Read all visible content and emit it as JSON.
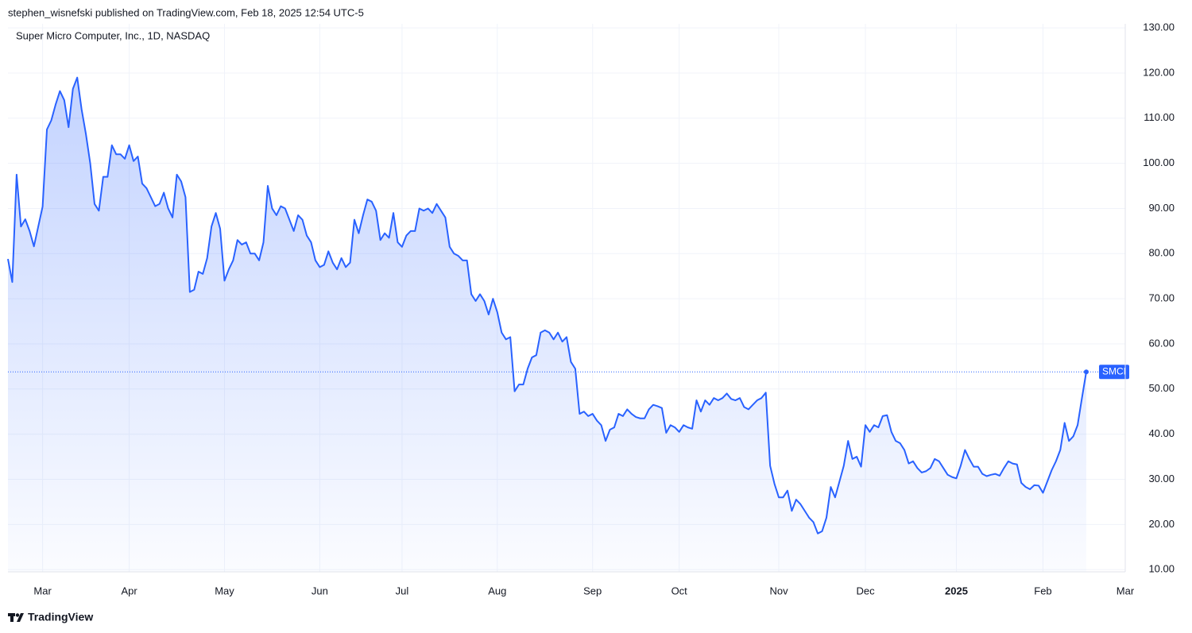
{
  "header": {
    "text": "stephen_wisnefski published on TradingView.com, Feb 18, 2025 12:54 UTC-5"
  },
  "footer": {
    "brand": "TradingView"
  },
  "chart_data": {
    "type": "line",
    "title": "Super Micro Computer, Inc., 1D, NASDAQ",
    "categories": [
      null,
      null,
      null,
      null,
      null,
      null,
      null,
      null,
      "Mar",
      null,
      null,
      null,
      null,
      null,
      null,
      null,
      null,
      null,
      null,
      null,
      null,
      null,
      null,
      null,
      null,
      null,
      null,
      null,
      "Apr",
      null,
      null,
      null,
      null,
      null,
      null,
      null,
      null,
      null,
      null,
      null,
      null,
      null,
      null,
      null,
      null,
      null,
      null,
      null,
      null,
      null,
      "May",
      null,
      null,
      null,
      null,
      null,
      null,
      null,
      null,
      null,
      null,
      null,
      null,
      null,
      null,
      null,
      null,
      null,
      null,
      null,
      null,
      null,
      "Jun",
      null,
      null,
      null,
      null,
      null,
      null,
      null,
      null,
      null,
      null,
      null,
      null,
      null,
      null,
      null,
      null,
      null,
      null,
      "Jul",
      null,
      null,
      null,
      null,
      null,
      null,
      null,
      null,
      null,
      null,
      null,
      null,
      null,
      null,
      null,
      null,
      null,
      null,
      null,
      null,
      null,
      "Aug",
      null,
      null,
      null,
      null,
      null,
      null,
      null,
      null,
      null,
      null,
      null,
      null,
      null,
      null,
      null,
      null,
      null,
      null,
      null,
      null,
      null,
      "Sep",
      null,
      null,
      null,
      null,
      null,
      null,
      null,
      null,
      null,
      null,
      null,
      null,
      null,
      null,
      null,
      null,
      null,
      null,
      null,
      "Oct",
      null,
      null,
      null,
      null,
      null,
      null,
      null,
      null,
      null,
      null,
      null,
      null,
      null,
      null,
      null,
      null,
      null,
      null,
      null,
      null,
      null,
      null,
      "Nov",
      null,
      null,
      null,
      null,
      null,
      null,
      null,
      null,
      null,
      null,
      null,
      null,
      null,
      null,
      null,
      null,
      null,
      null,
      null,
      "Dec",
      null,
      null,
      null,
      null,
      null,
      null,
      null,
      null,
      null,
      null,
      null,
      null,
      null,
      null,
      null,
      null,
      null,
      null,
      null,
      null,
      "2025",
      null,
      null,
      null,
      null,
      null,
      null,
      null,
      null,
      null,
      null,
      null,
      null,
      null,
      null,
      null,
      null,
      null,
      null,
      null,
      "Feb",
      null,
      null,
      null,
      null,
      null,
      null,
      null,
      null,
      null,
      null,
      null,
      null,
      null,
      null,
      null,
      null,
      null,
      null,
      "Mar"
    ],
    "series": [
      {
        "name": "SMCI",
        "color": "#2962ff",
        "values": [
          78.8,
          73.7,
          97.5,
          86,
          87.6,
          85,
          81.6,
          86,
          90.4,
          107.5,
          109.5,
          113,
          116,
          114,
          108,
          116.5,
          119,
          112,
          106.5,
          100,
          91,
          89.5,
          97,
          97,
          104,
          102,
          102,
          101,
          104,
          100.5,
          101.5,
          95.5,
          94.5,
          92.5,
          90.5,
          91,
          93.5,
          90,
          88,
          97.5,
          96,
          92.5,
          71.5,
          72,
          76,
          75.5,
          79,
          86,
          89,
          85.5,
          74,
          76.5,
          78.5,
          83,
          82,
          82.5,
          80,
          80,
          78.5,
          82.5,
          95,
          90,
          88.5,
          90.5,
          90,
          87.5,
          85,
          88.5,
          87.5,
          84,
          82.5,
          78.5,
          77,
          77.5,
          80.5,
          78,
          76.5,
          79,
          77,
          78,
          87.5,
          84.5,
          88.5,
          92,
          91.5,
          89.5,
          83,
          84.5,
          83.5,
          89,
          82.5,
          81.5,
          84,
          85,
          85,
          90,
          89.5,
          90,
          89,
          91,
          89.5,
          88,
          81.5,
          80,
          79.5,
          78.5,
          78.5,
          71,
          69.5,
          71,
          69.5,
          66.5,
          70,
          67,
          62.5,
          61,
          61.5,
          49.5,
          51,
          51,
          54.5,
          57,
          57.5,
          62.5,
          63,
          62.5,
          61,
          62.5,
          60.5,
          61.5,
          56,
          54.5,
          44.5,
          45,
          44,
          44.5,
          43,
          42,
          38.5,
          41,
          41.5,
          44.5,
          44,
          45.5,
          44.5,
          43.8,
          43.5,
          43.5,
          45.5,
          46.5,
          46.2,
          45.8,
          40.3,
          42,
          41.5,
          40.5,
          42,
          41.5,
          41.2,
          47.5,
          45,
          47.5,
          46.5,
          48,
          47.5,
          48,
          49,
          47.8,
          47.5,
          48,
          46,
          45.5,
          46.5,
          47.5,
          48,
          49.2,
          33,
          29,
          26,
          26,
          27.5,
          23,
          25.5,
          24.5,
          23,
          21.5,
          20.5,
          18,
          18.5,
          21.5,
          28.3,
          26,
          29.5,
          33,
          38.5,
          34.5,
          35,
          32.8,
          42,
          40.5,
          42,
          41.5,
          44,
          44.2,
          40.5,
          38.5,
          38,
          36.5,
          33.5,
          34,
          32.5,
          31.5,
          31.8,
          32.5,
          34.5,
          34,
          32.5,
          31,
          30.5,
          30.2,
          33,
          36.5,
          34.5,
          32.8,
          32.8,
          31.2,
          30.7,
          31,
          31.2,
          30.8,
          32.5,
          34,
          33.5,
          33.3,
          29.2,
          28.3,
          27.8,
          28.7,
          28.6,
          27,
          29.5,
          32,
          34,
          36.5,
          42.5,
          38.5,
          39.5,
          42,
          48,
          53.8,
          null,
          null,
          null,
          null,
          null,
          null,
          null,
          null,
          null
        ]
      }
    ],
    "ylim": [
      9.5,
      130.9
    ],
    "yticks": [
      {
        "value": 10,
        "label": "10.00"
      },
      {
        "value": 20,
        "label": "20.00"
      },
      {
        "value": 30,
        "label": "30.00"
      },
      {
        "value": 40,
        "label": "40.00"
      },
      {
        "value": 50,
        "label": "50.00"
      },
      {
        "value": 60,
        "label": "60.00"
      },
      {
        "value": 70,
        "label": "70.00"
      },
      {
        "value": 80,
        "label": "80.00"
      },
      {
        "value": 90,
        "label": "90.00"
      },
      {
        "value": 100,
        "label": "100.00"
      },
      {
        "value": 110,
        "label": "110.00"
      },
      {
        "value": 120,
        "label": "120.00"
      },
      {
        "value": 130,
        "label": "130.00"
      }
    ],
    "grid": true
  }
}
